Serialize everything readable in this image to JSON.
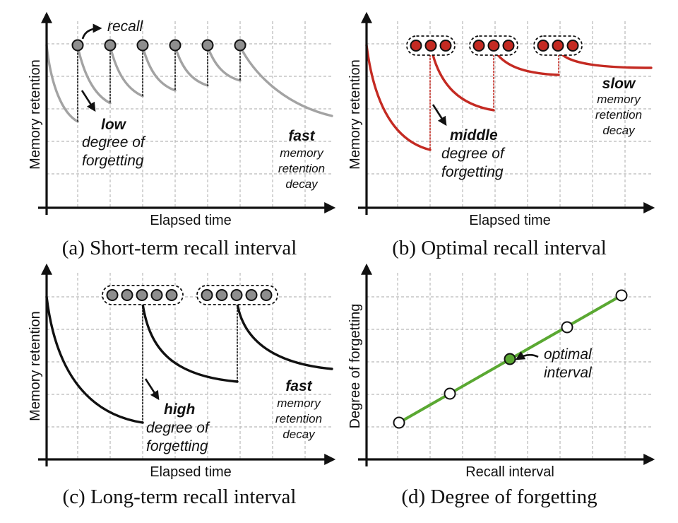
{
  "panel_a": {
    "caption": "(a) Short-term recall interval",
    "ylabel": "Memory retention",
    "xlabel": "Elapsed time",
    "recall_label": "recall",
    "low_word": "low",
    "low_rest_1": "degree of",
    "low_rest_2": "forgetting",
    "fast_word": "fast",
    "fast_rest_1": "memory",
    "fast_rest_2": "retention",
    "fast_rest_3": "decay",
    "curve_color": "#a3a3a3"
  },
  "panel_b": {
    "caption": "(b) Optimal recall interval",
    "ylabel": "Memory retention",
    "xlabel": "Elapsed time",
    "middle_word": "middle",
    "middle_rest_1": "degree of",
    "middle_rest_2": "forgetting",
    "slow_word": "slow",
    "slow_rest_1": "memory",
    "slow_rest_2": "retention",
    "slow_rest_3": "decay",
    "curve_color": "#c42a22"
  },
  "panel_c": {
    "caption": "(c) Long-term recall interval",
    "ylabel": "Memory retention",
    "xlabel": "Elapsed time",
    "high_word": "high",
    "high_rest_1": "degree of",
    "high_rest_2": "forgetting",
    "fast_word": "fast",
    "fast_rest_1": "memory",
    "fast_rest_2": "retention",
    "fast_rest_3": "decay",
    "curve_color": "#111111"
  },
  "panel_d": {
    "caption": "(d) Degree of forgetting",
    "ylabel": "Degree of forgetting",
    "xlabel": "Recall interval",
    "optimal_1": "optimal",
    "optimal_2": "interval",
    "line_color": "#5aa832",
    "optimal_dot_color": "#5aa832"
  }
}
